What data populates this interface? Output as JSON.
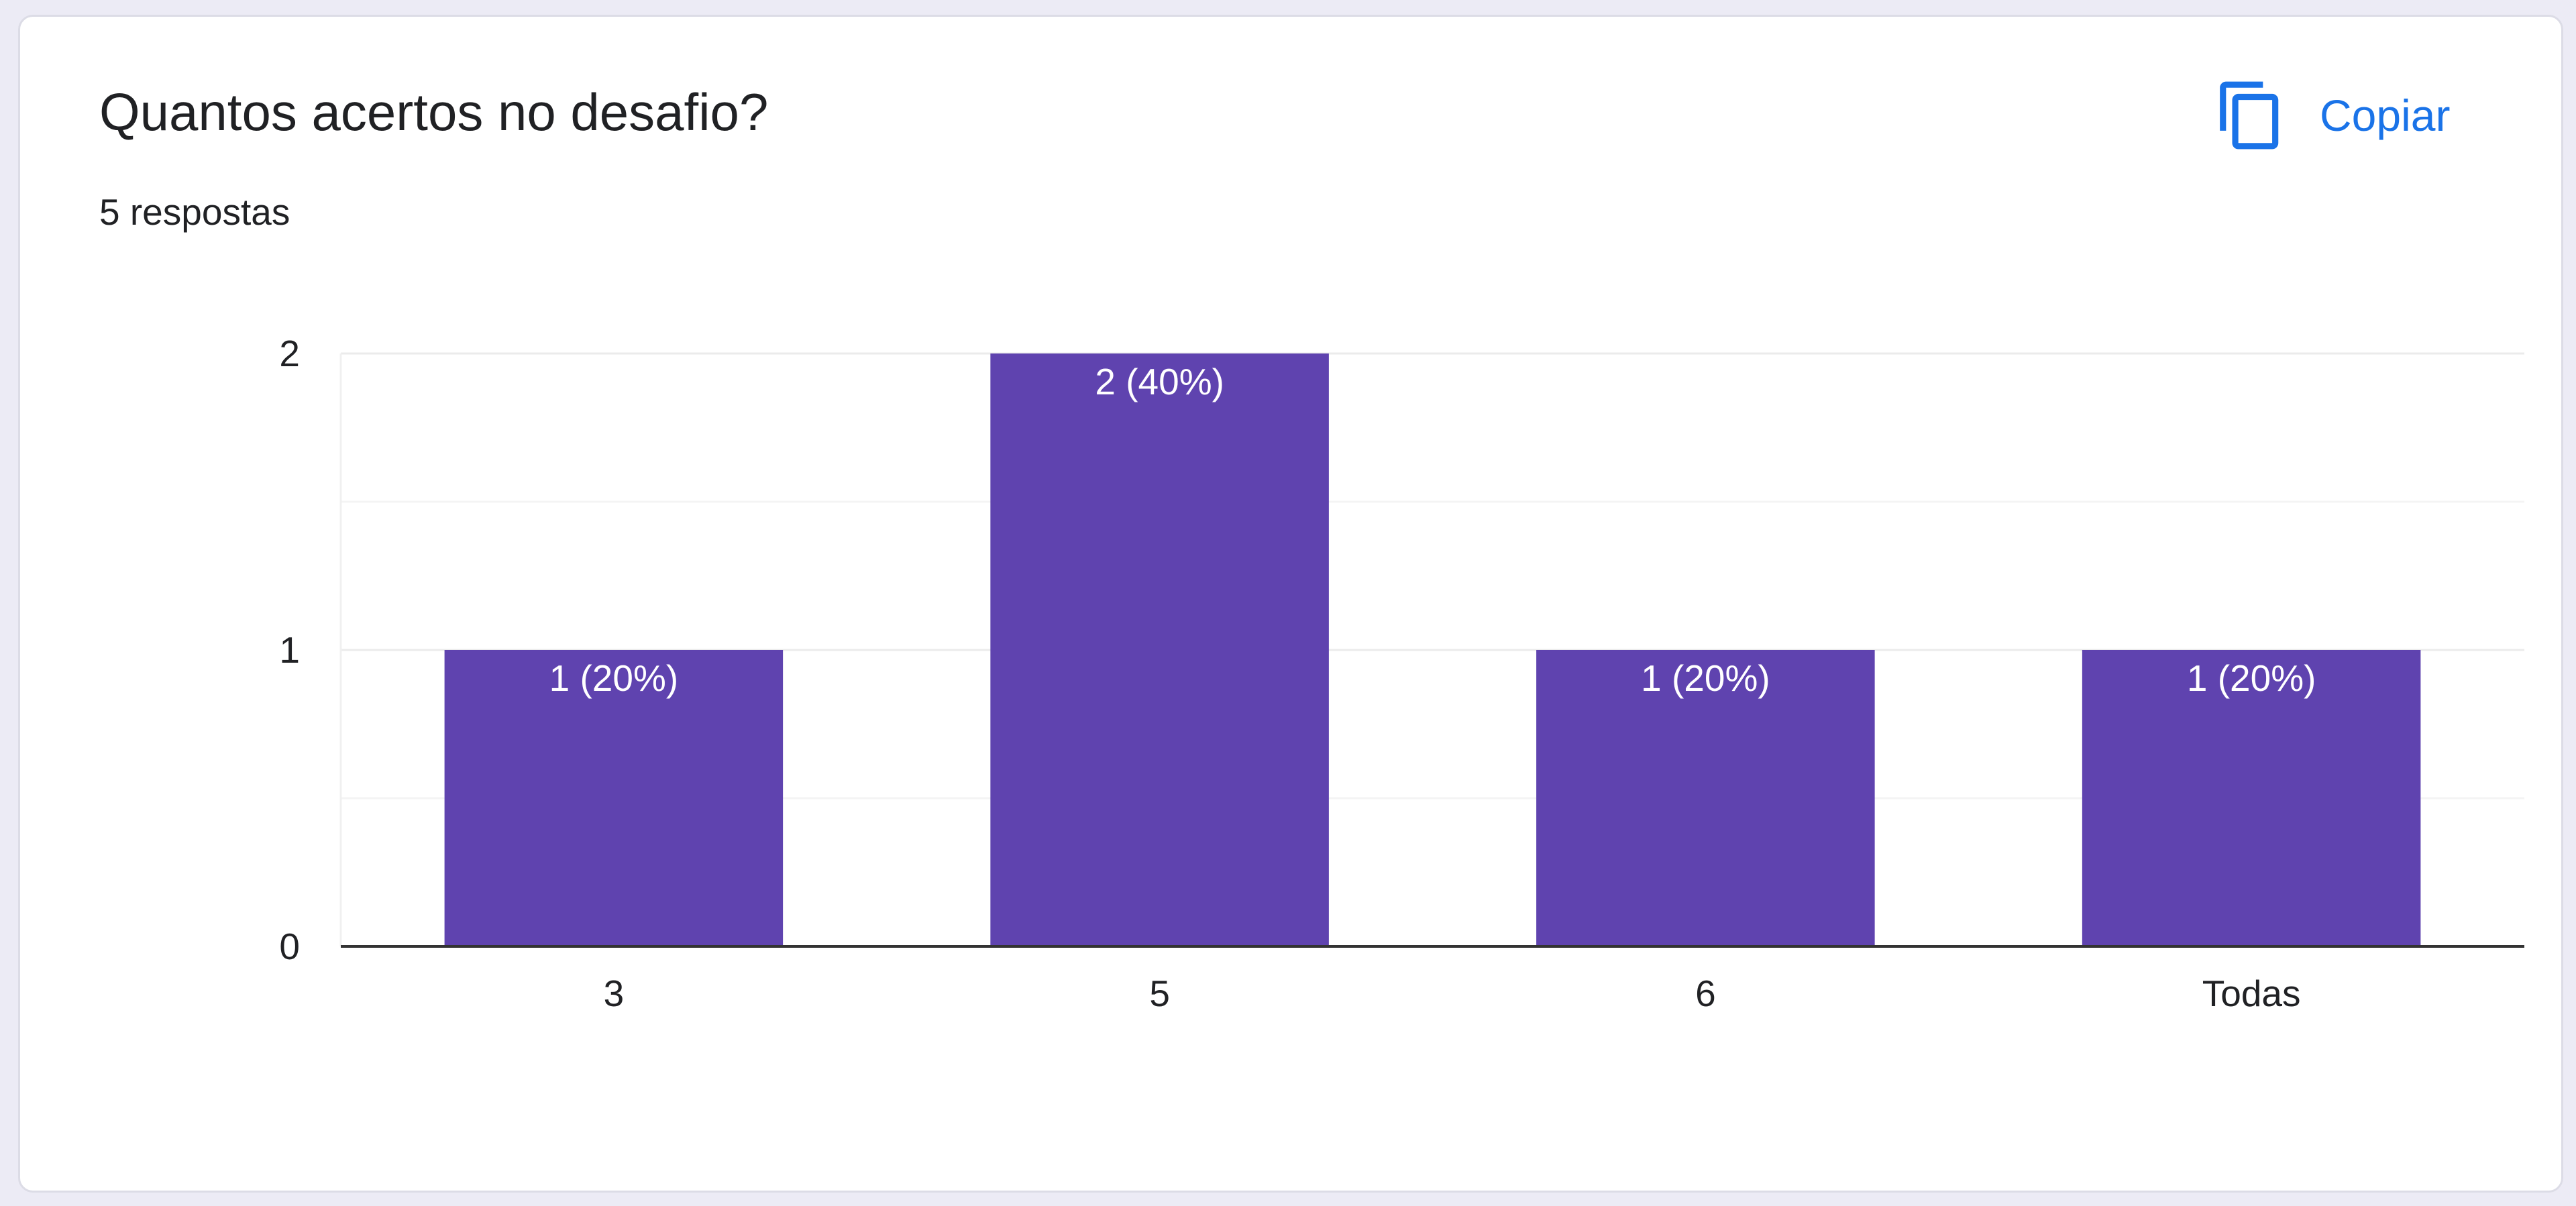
{
  "question": {
    "title": "Quantos acertos no desafio?",
    "responses": "5 respostas"
  },
  "copy_button": {
    "label": "Copiar",
    "icon": "copy-icon"
  },
  "colors": {
    "bar": "#5f43af",
    "accent": "#1a73e8",
    "grid": "#ebebeb",
    "axis": "#333333"
  },
  "chart_data": {
    "type": "bar",
    "categories": [
      "3",
      "5",
      "6",
      "Todas"
    ],
    "values": [
      1,
      2,
      1,
      1
    ],
    "data_labels": [
      "1 (20%)",
      "2 (40%)",
      "1 (20%)",
      "1 (20%)"
    ],
    "y_ticks": [
      "0",
      "1",
      "2"
    ],
    "ylim": [
      0,
      2
    ],
    "grid": true,
    "title": "",
    "xlabel": "",
    "ylabel": ""
  }
}
